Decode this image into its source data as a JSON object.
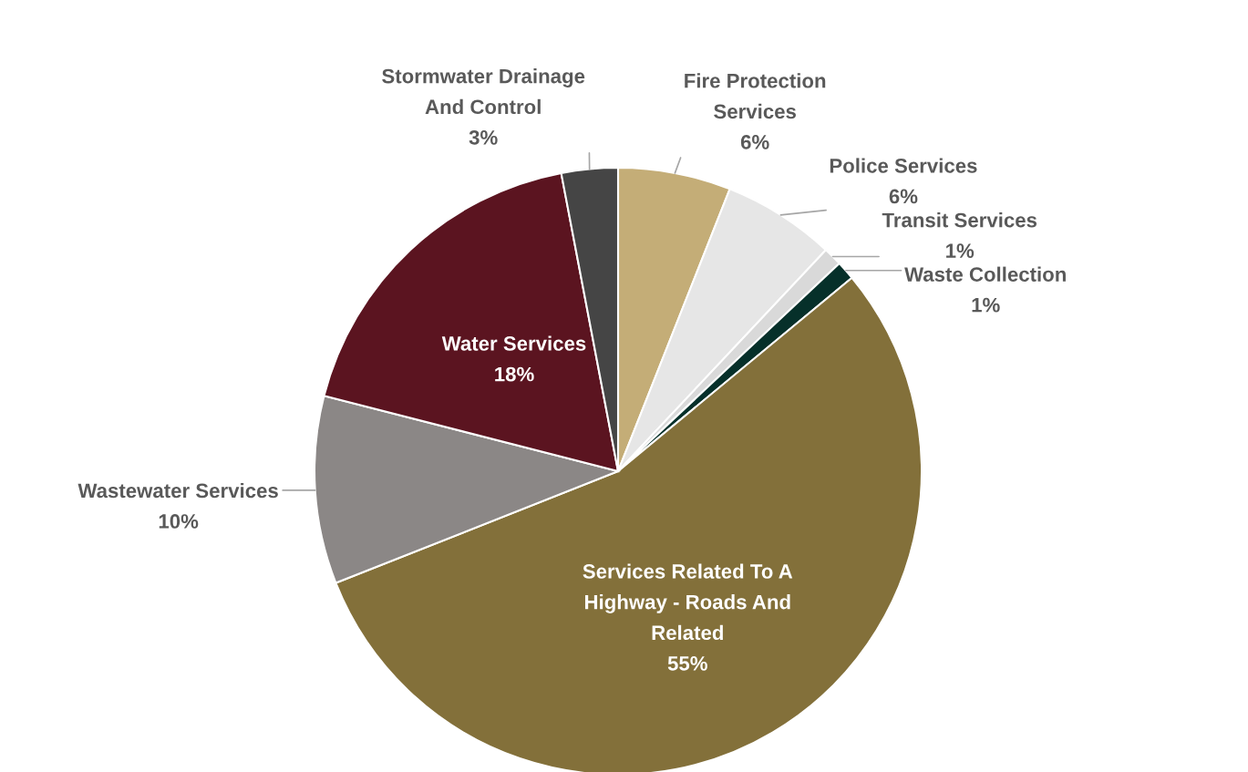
{
  "chart_data": {
    "type": "pie",
    "categories": [
      "Fire Protection Services",
      "Police Services",
      "Transit Services",
      "Waste Collection",
      "Services Related To A Highway - Roads And Related",
      "Wastewater Services",
      "Water Services",
      "Stormwater Drainage And Control"
    ],
    "values": [
      6,
      6,
      1,
      1,
      55,
      10,
      18,
      3
    ],
    "value_labels": [
      "6%",
      "6%",
      "1%",
      "1%",
      "55%",
      "10%",
      "18%",
      "3%"
    ],
    "colors": [
      "#c4ad77",
      "#e6e6e6",
      "#d9d9d9",
      "#06302a",
      "#83703a",
      "#8b8786",
      "#5b1420",
      "#454545"
    ],
    "legend": false
  }
}
